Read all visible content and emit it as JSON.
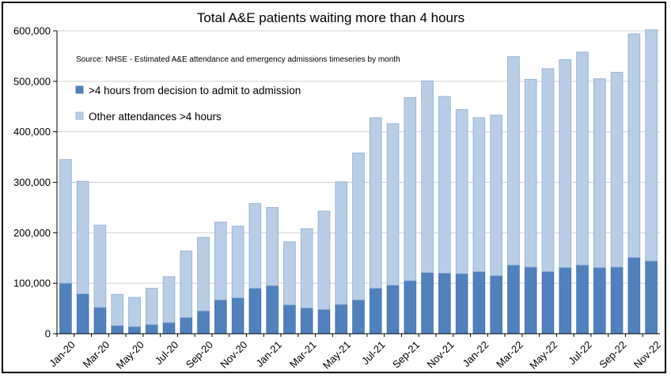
{
  "chart_data": {
    "type": "bar",
    "stacked": true,
    "title": "Total A&E patients waiting more than 4 hours",
    "source_note": "Source: NHSE - Estimated A&E attendance and emergency admissions timeseries by month",
    "ylim": [
      0,
      600000
    ],
    "yticks": [
      "0",
      "100,000",
      "200,000",
      "300,000",
      "400,000",
      "500,000",
      "600,000"
    ],
    "ytick_values": [
      0,
      100000,
      200000,
      300000,
      400000,
      500000,
      600000
    ],
    "grid": true,
    "legend_position": "top-left",
    "categories": [
      "Jan-20",
      "Feb-20",
      "Mar-20",
      "Apr-20",
      "May-20",
      "Jun-20",
      "Jul-20",
      "Aug-20",
      "Sep-20",
      "Oct-20",
      "Nov-20",
      "Dec-20",
      "Jan-21",
      "Feb-21",
      "Mar-21",
      "Apr-21",
      "May-21",
      "Jun-21",
      "Jul-21",
      "Aug-21",
      "Sep-21",
      "Oct-21",
      "Nov-21",
      "Dec-21",
      "Jan-22",
      "Feb-22",
      "Mar-22",
      "Apr-22",
      "May-22",
      "Jun-22",
      "Jul-22",
      "Aug-22",
      "Sep-22",
      "Oct-22",
      "Nov-22"
    ],
    "xtick_labels": [
      "Jan-20",
      "",
      "Mar-20",
      "",
      "May-20",
      "",
      "Jul-20",
      "",
      "Sep-20",
      "",
      "Nov-20",
      "",
      "Jan-21",
      "",
      "Mar-21",
      "",
      "May-21",
      "",
      "Jul-21",
      "",
      "Sep-21",
      "",
      "Nov-21",
      "",
      "Jan-22",
      "",
      "Mar-22",
      "",
      "May-22",
      "",
      "Jul-22",
      "",
      "Sep-22",
      "",
      "Nov-22"
    ],
    "series": [
      {
        "name": ">4 hours from decision to admit to admission",
        "color": "#4f81bd",
        "values": [
          100000,
          79000,
          52000,
          16000,
          14000,
          18000,
          22000,
          32000,
          45000,
          67000,
          71000,
          90000,
          95000,
          57000,
          51000,
          48000,
          58000,
          67000,
          90000,
          96000,
          105000,
          121000,
          120000,
          119000,
          123000,
          115000,
          136000,
          132000,
          123000,
          131000,
          136000,
          131000,
          132000,
          151000,
          144000
        ]
      },
      {
        "name": "Other attendances >4 hours",
        "color": "#b9cde5",
        "values": [
          245000,
          223000,
          163000,
          62000,
          58000,
          72000,
          91000,
          132000,
          146000,
          154000,
          142000,
          168000,
          155000,
          125000,
          157000,
          195000,
          243000,
          291000,
          338000,
          320000,
          363000,
          380000,
          350000,
          325000,
          305000,
          318000,
          413000,
          372000,
          402000,
          412000,
          422000,
          374000,
          386000,
          443000,
          458000
        ]
      }
    ]
  }
}
